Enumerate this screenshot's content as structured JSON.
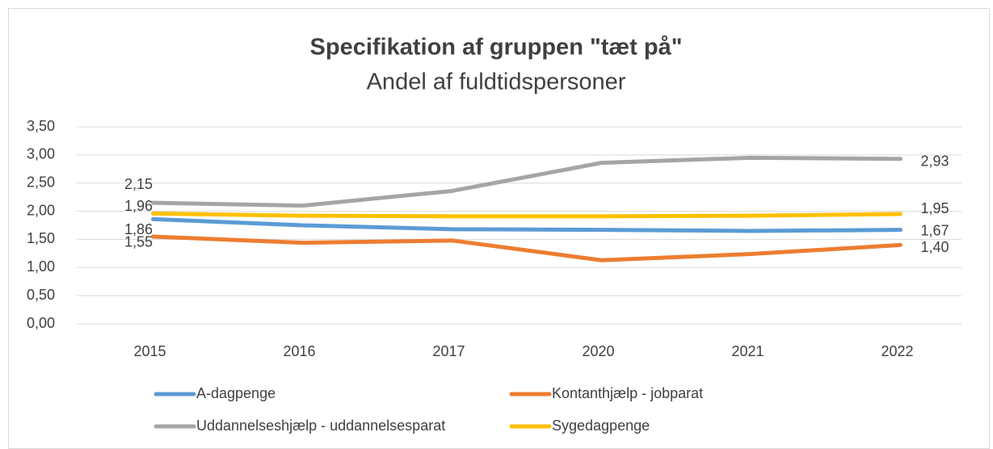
{
  "chart_data": {
    "type": "line",
    "title": "Specifikation af gruppen \"tæt på\"",
    "subtitle": "Andel af fuldtidspersoner",
    "categories": [
      "2015",
      "2016",
      "2017",
      "2020",
      "2021",
      "2022"
    ],
    "series": [
      {
        "name": "A-dagpenge",
        "color": "#5b9bd5",
        "values": [
          1.86,
          1.75,
          1.68,
          1.67,
          1.65,
          1.67
        ],
        "value_labels": [
          "1,86",
          null,
          null,
          null,
          null,
          "1,67"
        ]
      },
      {
        "name": "Kontanthjælp - jobparat",
        "color": "#ed7d31",
        "values": [
          1.55,
          1.44,
          1.48,
          1.13,
          1.24,
          1.4
        ],
        "value_labels": [
          "1,55",
          null,
          null,
          null,
          null,
          "1,40"
        ]
      },
      {
        "name": "Uddannelseshjælp - uddannelsesparat",
        "color": "#a5a5a5",
        "values": [
          2.15,
          2.1,
          2.36,
          2.86,
          2.95,
          2.93
        ],
        "value_labels": [
          "2,15",
          null,
          null,
          null,
          null,
          "2,93"
        ]
      },
      {
        "name": "Sygedagpenge",
        "color": "#ffc000",
        "values": [
          1.96,
          1.92,
          1.91,
          1.91,
          1.92,
          1.95
        ],
        "value_labels": [
          "1,96",
          null,
          null,
          null,
          null,
          "1,95"
        ]
      }
    ],
    "ylim": [
      0,
      3.5
    ],
    "yticks": [
      {
        "value": 0,
        "label": "0,00"
      },
      {
        "value": 0.5,
        "label": "0,50"
      },
      {
        "value": 1,
        "label": "1,00"
      },
      {
        "value": 1.5,
        "label": "1,50"
      },
      {
        "value": 2,
        "label": "2,00"
      },
      {
        "value": 2.5,
        "label": "2,50"
      },
      {
        "value": 3,
        "label": "3,00"
      },
      {
        "value": 3.5,
        "label": "3,50"
      }
    ],
    "grid": true,
    "legend": "bottom"
  }
}
